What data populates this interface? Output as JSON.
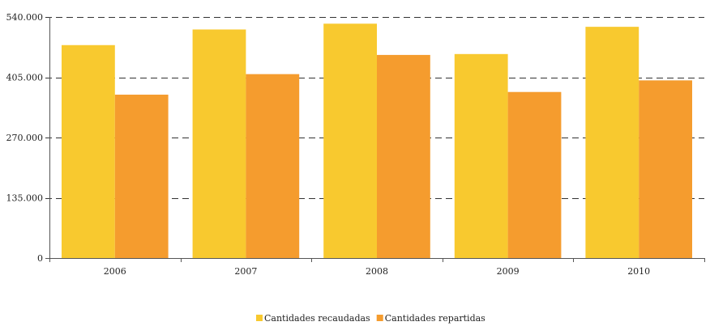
{
  "chart_data": {
    "type": "bar",
    "categories": [
      "2006",
      "2007",
      "2008",
      "2009",
      "2010"
    ],
    "series": [
      {
        "name": "Cantidades recaudadas",
        "color": "#F8C92F",
        "values": [
          477000,
          512000,
          525000,
          457000,
          518000
        ]
      },
      {
        "name": "Cantidades repartidas",
        "color": "#F59C2E",
        "values": [
          366000,
          412000,
          455000,
          372000,
          398000
        ]
      }
    ],
    "yticks": [
      0,
      135000,
      270000,
      405000,
      540000
    ],
    "ytick_labels": [
      "0",
      "135.000",
      "270.000",
      "405.000",
      "540.000"
    ],
    "ylim": [
      0,
      540000
    ],
    "grid": true,
    "legend_position": "bottom-center"
  }
}
